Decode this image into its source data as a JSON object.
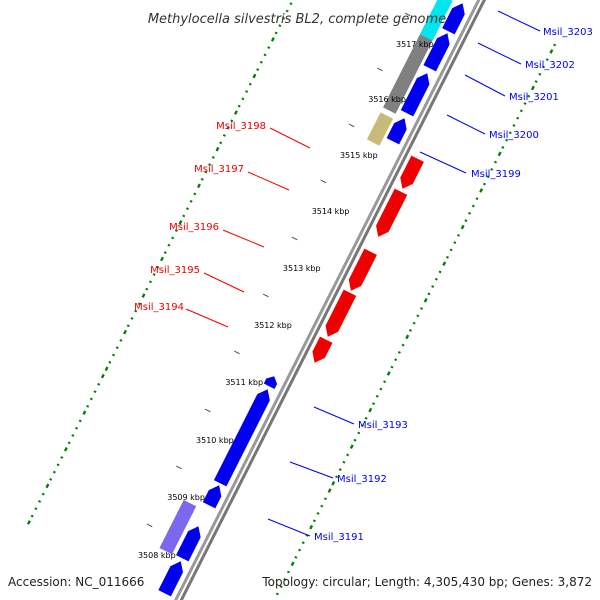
{
  "title": "Methylocella silvestris BL2, complete genome",
  "footer": {
    "accession": "Accession: NC_011666",
    "topology": "Topology: circular; Length: 4,305,430 bp; Genes: 3,872"
  },
  "colors": {
    "forward_gene": "#0000ee",
    "reverse_gene": "#ee0000",
    "backbone": "#888888",
    "gc_dots": "#008000",
    "grey_feature": "#808080",
    "cyan_feature": "#00e5ee",
    "tan_feature": "#c8bb7a",
    "violet_feature": "#7b68ee"
  },
  "ticks": [
    "3517 kbp",
    "3516 kbp",
    "3515 kbp",
    "3514 kbp",
    "3513 kbp",
    "3512 kbp",
    "3511 kbp",
    "3510 kbp",
    "3509 kbp",
    "3508 kbp"
  ],
  "forward_labels": [
    "Msil_3203",
    "Msil_3202",
    "Msil_3201",
    "Msil_3200",
    "Msil_3199",
    "Msil_3193",
    "Msil_3192",
    "Msil_3191"
  ],
  "reverse_labels": [
    "Msil_3198",
    "Msil_3197",
    "Msil_3196",
    "Msil_3195",
    "Msil_3194"
  ]
}
